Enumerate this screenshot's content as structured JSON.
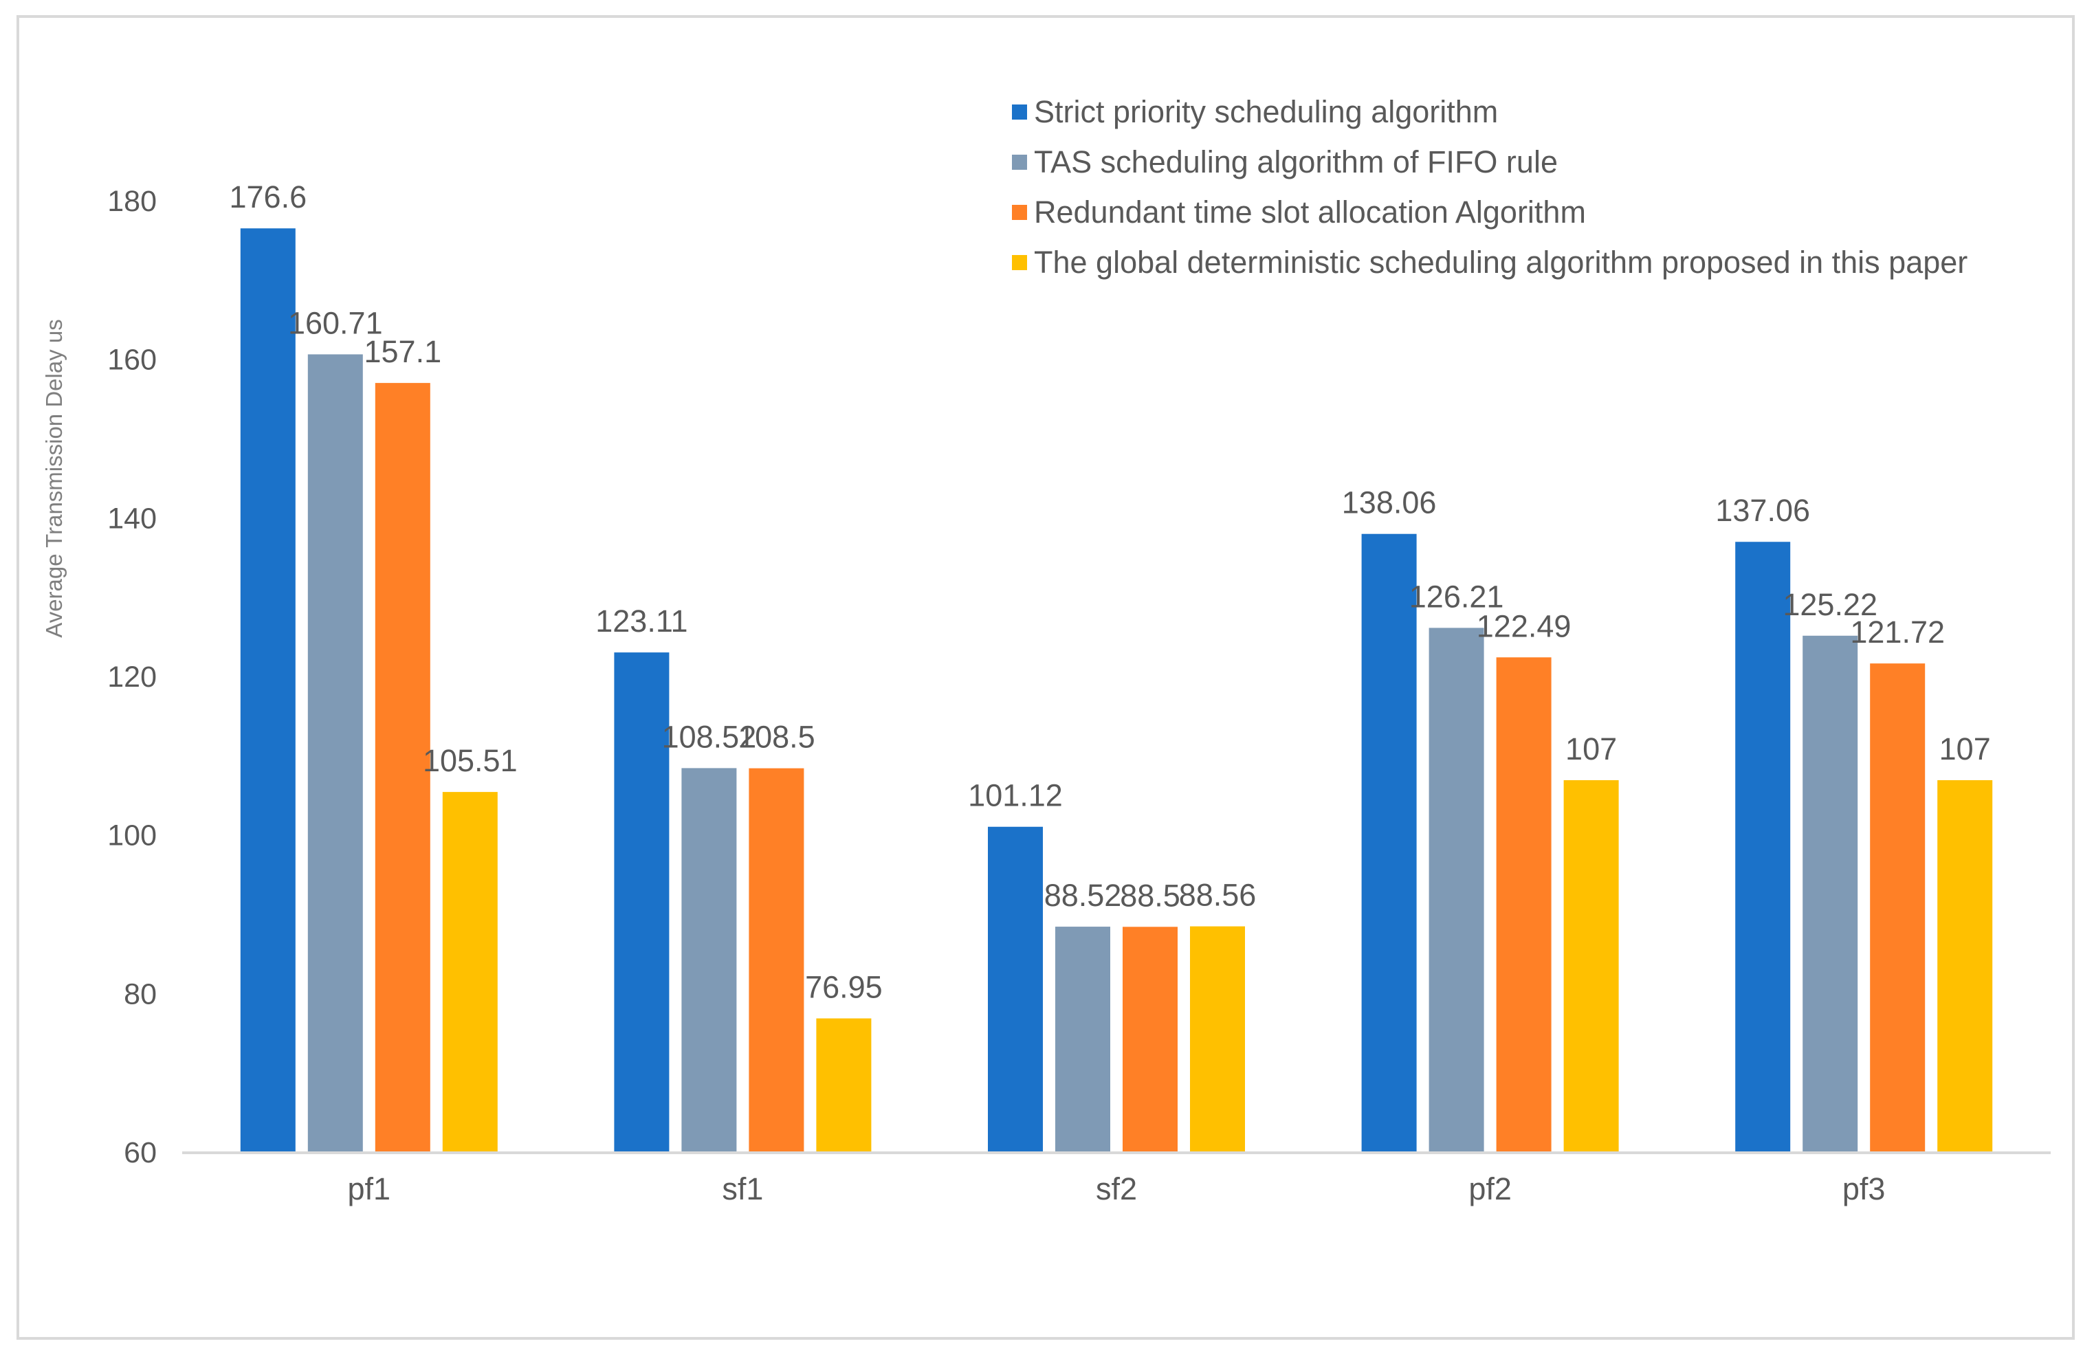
{
  "chart_data": {
    "type": "bar",
    "title": "",
    "xlabel": "",
    "ylabel": "Average Transmission Delay us",
    "categories": [
      "pf1",
      "sf1",
      "sf2",
      "pf2",
      "pf3"
    ],
    "series": [
      {
        "name": "Strict priority scheduling algorithm",
        "color": "#1b72c9",
        "values": [
          176.6,
          123.11,
          101.12,
          138.06,
          137.06
        ],
        "labels": [
          "176.6",
          "123.11",
          "101.12",
          "138.06",
          "137.06"
        ]
      },
      {
        "name": "TAS scheduling algorithm of FIFO rule",
        "color": "#7f9ab5",
        "values": [
          160.71,
          108.52,
          88.52,
          126.21,
          125.22
        ],
        "labels": [
          "160.71",
          "108.52",
          "88.52",
          "126.21",
          "125.22"
        ]
      },
      {
        "name": "Redundant time slot allocation Algorithm",
        "color": "#ff8026",
        "values": [
          157.1,
          108.5,
          88.5,
          122.49,
          121.72
        ],
        "labels": [
          "157.1",
          "108.5",
          "88.5",
          "122.49",
          "121.72"
        ]
      },
      {
        "name": "The global deterministic scheduling algorithm proposed in this paper",
        "color": "#ffc000",
        "values": [
          105.51,
          76.95,
          88.56,
          107,
          107
        ],
        "labels": [
          "105.51",
          "76.95",
          "88.56",
          "107",
          "107"
        ]
      }
    ],
    "yticks": [
      "60",
      "80",
      "100",
      "120",
      "140",
      "160",
      "180"
    ],
    "ylim": [
      60,
      180
    ],
    "grid": false,
    "legend_position": "top-right"
  }
}
